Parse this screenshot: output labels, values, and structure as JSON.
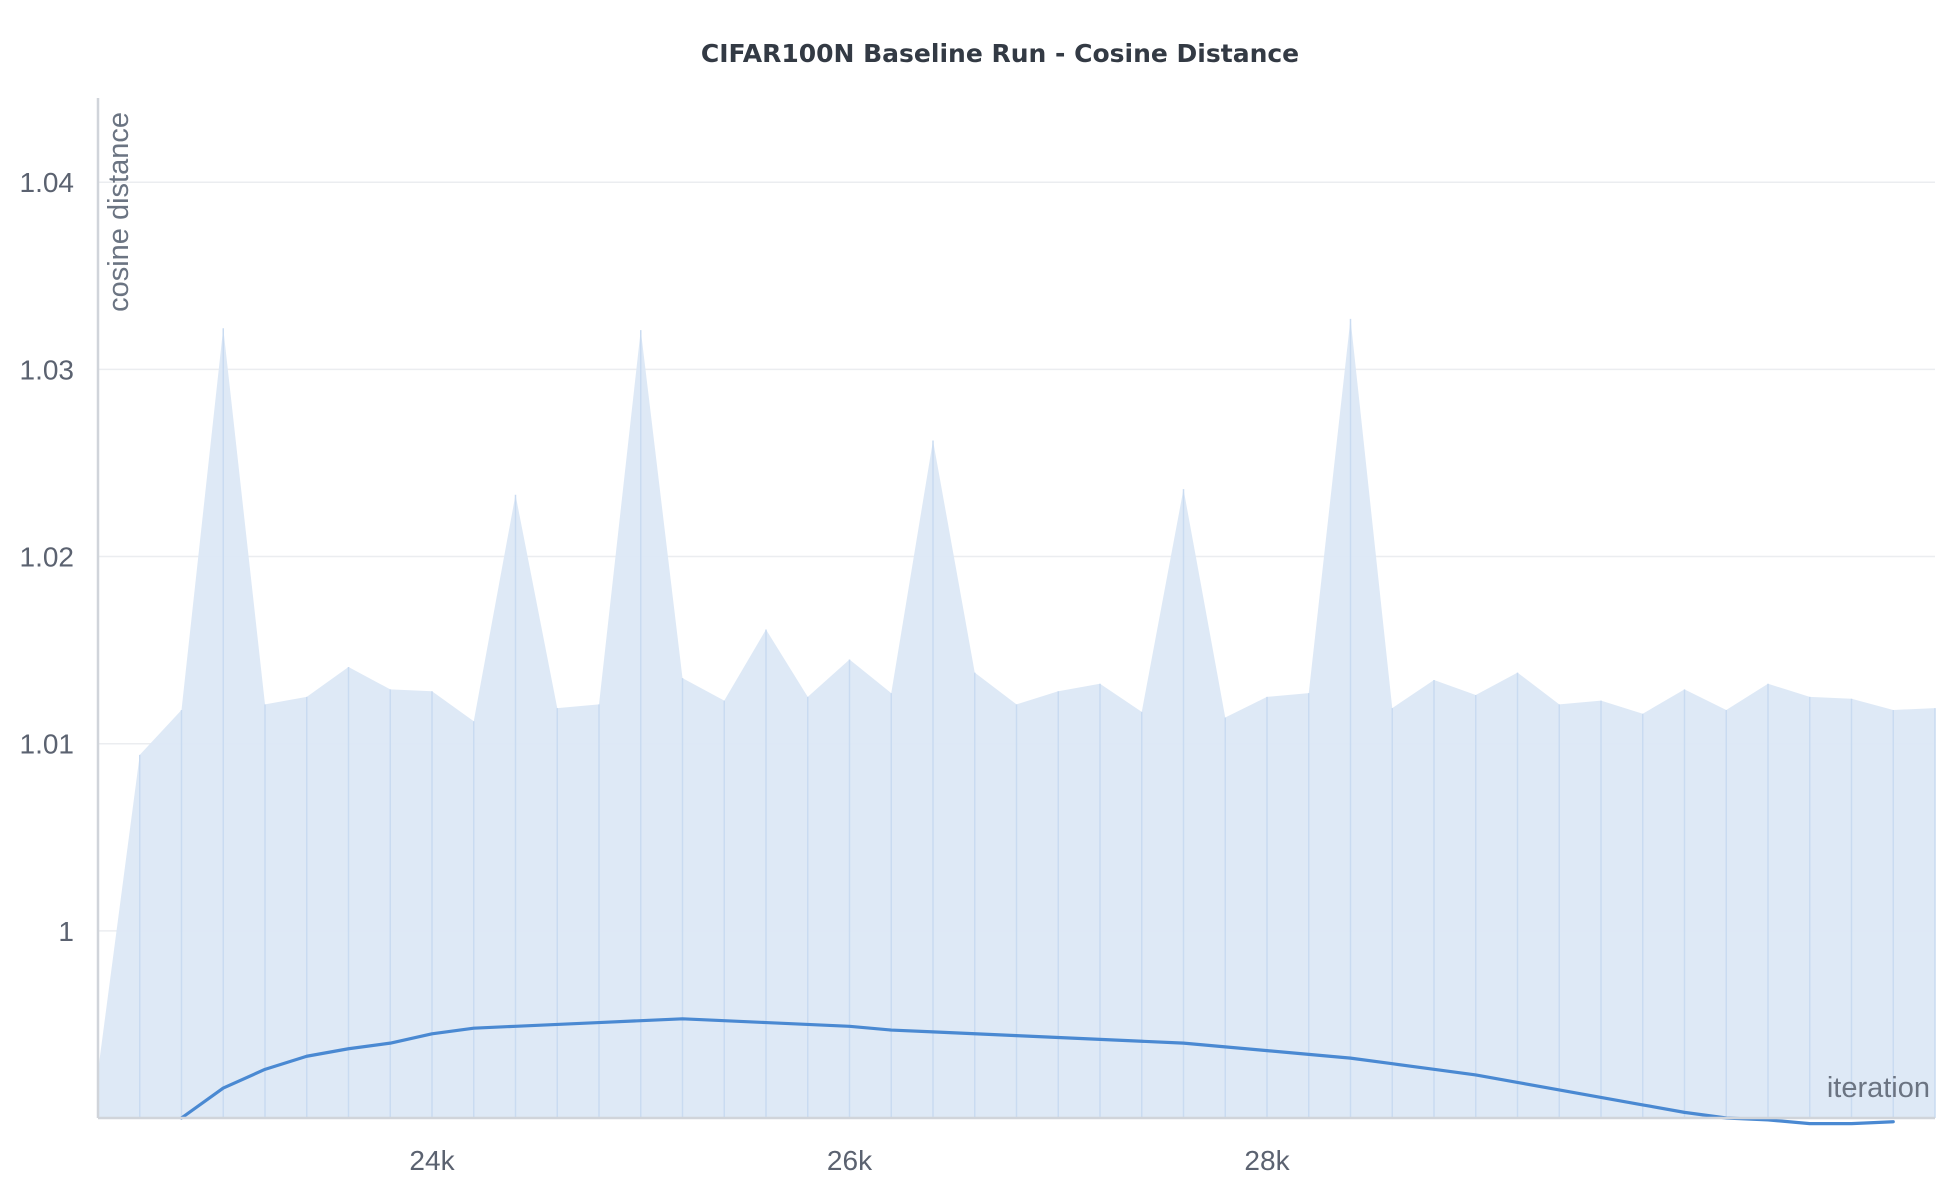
{
  "chart_data": {
    "type": "line",
    "title": "CIFAR100N Baseline Run - Cosine Distance",
    "xlabel": "iteration",
    "ylabel": "cosine distance",
    "xlim": [
      22400,
      31200
    ],
    "ylim": [
      0.99,
      1.0445
    ],
    "x_ticks": [
      24000,
      26000,
      28000
    ],
    "x_tick_labels": [
      "24k",
      "26k",
      "28k"
    ],
    "y_ticks": [
      1.0,
      1.01,
      1.02,
      1.03,
      1.04
    ],
    "y_tick_labels": [
      "1",
      "1.01",
      "1.02",
      "1.03",
      "1.04"
    ],
    "grid": true,
    "legend": "none",
    "colors": {
      "raw": "#dce8f6",
      "smoothed": "#4a89d2",
      "grid": "#ebedf0",
      "axis": "#d0d4da"
    },
    "series": [
      {
        "x": [
          22400,
          22600,
          22800,
          23000,
          23200,
          23400,
          23600,
          23800,
          24000,
          24200,
          24400,
          24600,
          24800,
          25000,
          25200,
          25400,
          25600,
          25800,
          26000,
          26200,
          26400,
          26600,
          26800,
          27000,
          27200,
          27400,
          27600,
          27800,
          28000,
          28200,
          28400,
          28600,
          28800,
          29000,
          29200,
          29400,
          29600,
          29800,
          30000,
          30200,
          30400,
          30600,
          30800,
          31000,
          31200
        ],
        "y": [
          0.9925,
          1.0094,
          1.0118,
          1.0322,
          1.0121,
          1.0125,
          1.0141,
          1.0129,
          1.0128,
          1.0112,
          1.0233,
          1.0119,
          1.0121,
          1.0321,
          1.0135,
          1.0123,
          1.0161,
          1.0125,
          1.0145,
          1.0127,
          1.0262,
          1.0138,
          1.0121,
          1.0128,
          1.0132,
          1.0117,
          1.0236,
          1.0114,
          1.0125,
          1.0127,
          1.0327,
          1.0119,
          1.0134,
          1.0126,
          1.0138,
          1.0121,
          1.0123,
          1.0116,
          1.0129,
          1.0118,
          1.0132,
          1.0125,
          1.0124,
          1.0118,
          1.0119
        ]
      },
      {
        "x": [
          22800,
          23000,
          23200,
          23400,
          23600,
          23800,
          24000,
          24200,
          24400,
          24600,
          24800,
          25000,
          25200,
          25400,
          25600,
          25800,
          26000,
          26200,
          26400,
          26600,
          26800,
          27000,
          27200,
          27400,
          27600,
          27800,
          28000,
          28200,
          28400,
          28600,
          28800,
          29000,
          29200,
          29400,
          29600,
          29800,
          30000,
          30200,
          30400,
          30600,
          30800,
          31000
        ],
        "y": [
          0.99,
          0.9916,
          0.9926,
          0.9933,
          0.9937,
          0.994,
          0.9945,
          0.9948,
          0.9949,
          0.995,
          0.9951,
          0.9952,
          0.9953,
          0.9952,
          0.9951,
          0.995,
          0.9949,
          0.9947,
          0.9946,
          0.9945,
          0.9944,
          0.9943,
          0.9942,
          0.9941,
          0.994,
          0.9938,
          0.9936,
          0.9934,
          0.9932,
          0.9929,
          0.9926,
          0.9923,
          0.9919,
          0.9915,
          0.9911,
          0.9907,
          0.9903,
          0.99,
          0.9899,
          0.9897,
          0.9897,
          0.9898
        ]
      }
    ]
  }
}
